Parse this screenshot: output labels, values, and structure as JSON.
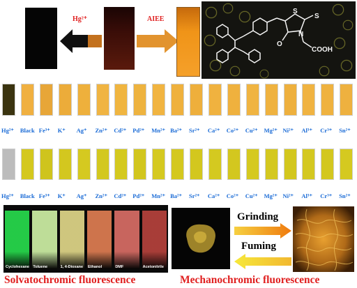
{
  "top": {
    "hg_label": "Hg²⁺",
    "aiee_label": "AIEE",
    "structure": {
      "atoms": [
        "S",
        "S",
        "N",
        "O",
        "COOH"
      ]
    },
    "colors": {
      "dark_vial": "#050505",
      "red_vial": "#3a0d08",
      "orange_vial": "#f09418",
      "arrow_orange": "#e2932e",
      "arrow_dark": "#101010"
    }
  },
  "rows": {
    "labels": [
      "Hg²⁺",
      "Black",
      "Fe³⁺",
      "K⁺",
      "Ag⁺",
      "Zn²⁺",
      "Cd²⁺",
      "Pd²⁺",
      "Mn²⁺",
      "Ba²⁺",
      "Sr²⁺",
      "Ca²⁺",
      "Co²⁺",
      "Cu²⁺",
      "Mg²⁺",
      "Ni²⁺",
      "Al³⁺",
      "Cr³⁺",
      "Sn²⁺"
    ],
    "row1_colors": [
      "#3b3410",
      "#f0b040",
      "#e7a638",
      "#ecac3a",
      "#eeb03c",
      "#f0b442",
      "#f0b540",
      "#eeb33f",
      "#f1b440",
      "#efb13d",
      "#eeaf3c",
      "#f0b23f",
      "#efb13e",
      "#f0b441",
      "#efb23f",
      "#eeb03d",
      "#f0b341",
      "#efb23f",
      "#eeb13f"
    ],
    "row2_colors": [
      "#bcbcbc",
      "#d4c81e",
      "#cfc41d",
      "#d3c71f",
      "#d5c920",
      "#d3c81f",
      "#d4c91f",
      "#d2c61e",
      "#d5c920",
      "#d4c81f",
      "#d3c71e",
      "#d4c920",
      "#d3c71f",
      "#d5c920",
      "#d4c81f",
      "#d3c71e",
      "#d4c820",
      "#d3c71f",
      "#d5c920"
    ]
  },
  "solvatochromic": {
    "solvents": [
      "Cyclohexane",
      "Toluene",
      "1, 4-Dioxane",
      "Ethanol",
      "DMF",
      "Acetonitrile"
    ],
    "colors": [
      "#26d44a",
      "#c7e8a0",
      "#d9d084",
      "#d87a50",
      "#d26a62",
      "#b0403a"
    ],
    "caption": "Solvatochromic fluorescence"
  },
  "mechanochromic": {
    "grinding_label": "Grinding",
    "fuming_label": "Fuming",
    "caption": "Mechanochromic fluorescence",
    "colors": {
      "powder": "#b89a30",
      "film": "#c77f22",
      "arrow_grind": "#f08a10",
      "arrow_fume": "#f3dc30"
    }
  }
}
